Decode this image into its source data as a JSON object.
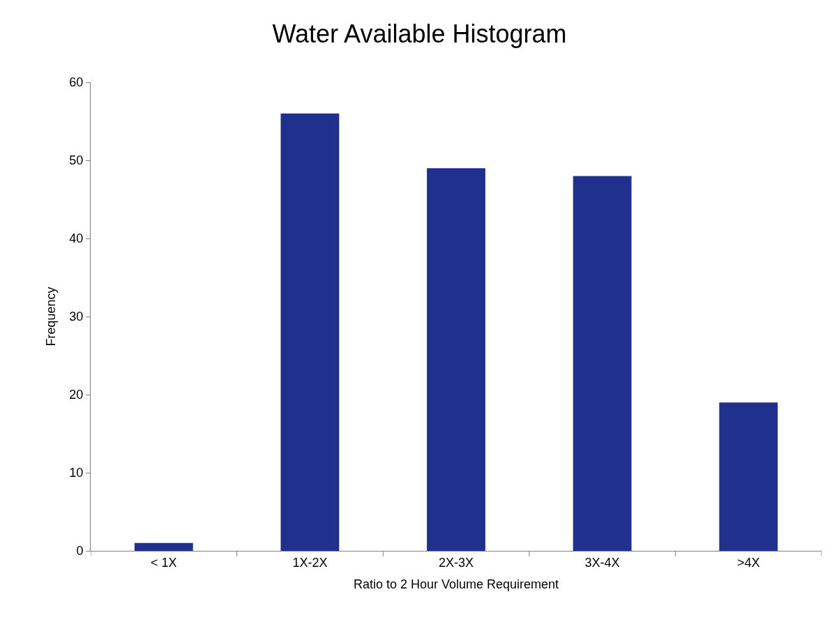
{
  "chart_data": {
    "type": "bar",
    "title": "Water Available Histogram",
    "xlabel": "Ratio to 2 Hour Volume Requirement",
    "ylabel": "Frequency",
    "categories": [
      "< 1X",
      "1X-2X",
      "2X-3X",
      "3X-4X",
      ">4X"
    ],
    "values": [
      1,
      56,
      49,
      48,
      19
    ],
    "color": "#1f318c",
    "ylim": [
      0,
      60
    ],
    "yticks": [
      0,
      10,
      20,
      30,
      40,
      50,
      60
    ],
    "grid": false
  }
}
